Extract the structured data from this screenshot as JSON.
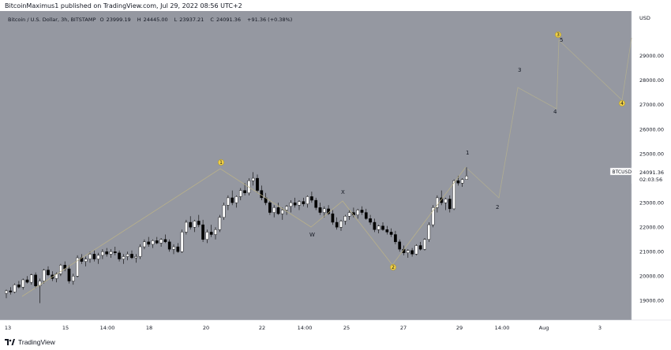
{
  "header": {
    "published_text": "BitcoinMaximus1 published on TradingView.com, Jul 29, 2022 08:56 UTC+2"
  },
  "legend": {
    "symbol": "Bitcoin / U.S. Dollar, 3h, BITSTAMP",
    "open_label": "O",
    "open": "23999.19",
    "high_label": "H",
    "high": "24445.00",
    "low_label": "L",
    "low": "23937.21",
    "close_label": "C",
    "close": "24091.36",
    "change": "+91.36 (+0.38%)"
  },
  "price_axis": {
    "currency": "USD",
    "ticks": [
      "29000.00",
      "28000.00",
      "27000.00",
      "26000.00",
      "25000.00",
      "24000.00",
      "23000.00",
      "22000.00",
      "21000.00",
      "20000.00",
      "19000.00"
    ]
  },
  "price_tag": {
    "symbol": "BTCUSD",
    "price": "24091.36",
    "countdown": "02:03:56"
  },
  "time_axis": {
    "ticks": [
      "13",
      "15",
      "14:00",
      "18",
      "20",
      "22",
      "14:00",
      "25",
      "27",
      "29",
      "14:00",
      "Aug",
      "3"
    ]
  },
  "wave_labels": {
    "plain": [
      "W",
      "X",
      "1",
      "2",
      "3",
      "4",
      "5"
    ],
    "circled": [
      "1",
      "2",
      "3",
      "4"
    ]
  },
  "footer": {
    "logo_text": "TradingView"
  },
  "colors": {
    "chart_background": "#9598a1",
    "up_candle": "#ffffff",
    "down_candle": "#000000",
    "wave_line": "#b8b08a",
    "projection_line": "#b0ad92",
    "circle_label": "#f0d047"
  },
  "chart_data": {
    "type": "candlestick",
    "symbol": "Bitcoin / U.S. Dollar",
    "timeframe": "3h",
    "exchange": "BITSTAMP",
    "last_price": 24091.36,
    "ylim": [
      18400,
      30700
    ],
    "y_ticks": [
      19000,
      20000,
      21000,
      22000,
      23000,
      24000,
      25000,
      26000,
      27000,
      28000,
      29000
    ],
    "x_ticks": [
      "13",
      "15",
      "14:00",
      "18",
      "20",
      "22",
      "14:00",
      "25",
      "27",
      "29",
      "14:00",
      "Aug",
      "3"
    ],
    "swing_path": [
      {
        "date": "Jul 13",
        "price": 19500,
        "label": ""
      },
      {
        "date": "Jul 20",
        "price": 24250,
        "label": "(1)"
      },
      {
        "date": "Jul 24",
        "price": 21900,
        "label": "W"
      },
      {
        "date": "Jul 25",
        "price": 22800,
        "label": "X"
      },
      {
        "date": "Jul 26",
        "price": 21000,
        "label": "(2)"
      },
      {
        "date": "Jul 29",
        "price": 24300,
        "label": ""
      }
    ],
    "projected_path": [
      {
        "date": "Jul 29",
        "price": 24300,
        "label": "1"
      },
      {
        "date": "Jul 30",
        "price": 23150,
        "label": "2"
      },
      {
        "date": "Jul 31",
        "price": 27900,
        "label": "3"
      },
      {
        "date": "Aug 1",
        "price": 26700,
        "label": "4"
      },
      {
        "date": "Aug 1",
        "price": 29200,
        "label": "5"
      },
      {
        "date": "Aug 4",
        "price": 26800,
        "label": "(4)"
      },
      {
        "date": "Aug 4",
        "price": 29500,
        "label": ""
      }
    ],
    "candles_ohlc": [
      [
        19300,
        19450,
        19100,
        19400
      ],
      [
        19400,
        19550,
        19250,
        19350
      ],
      [
        19350,
        19700,
        19300,
        19650
      ],
      [
        19650,
        19800,
        19500,
        19550
      ],
      [
        19550,
        19900,
        19450,
        19850
      ],
      [
        19850,
        20000,
        19700,
        19750
      ],
      [
        19750,
        20100,
        19650,
        20050
      ],
      [
        20050,
        20150,
        19500,
        19600
      ],
      [
        19600,
        19900,
        18900,
        19800
      ],
      [
        19800,
        20300,
        19700,
        20250
      ],
      [
        20250,
        20400,
        20000,
        20050
      ],
      [
        20050,
        20200,
        19800,
        19900
      ],
      [
        19900,
        20150,
        19750,
        20100
      ],
      [
        20100,
        20500,
        20000,
        20450
      ],
      [
        20450,
        20600,
        20200,
        20300
      ],
      [
        20300,
        20450,
        19700,
        19800
      ],
      [
        19800,
        20100,
        19650,
        20000
      ],
      [
        20000,
        20850,
        19950,
        20750
      ],
      [
        20750,
        20900,
        20500,
        20600
      ],
      [
        20600,
        20800,
        20400,
        20700
      ],
      [
        20700,
        21000,
        20550,
        20900
      ],
      [
        20900,
        21050,
        20600,
        20700
      ],
      [
        20700,
        20950,
        20500,
        20850
      ],
      [
        20850,
        21100,
        20700,
        21000
      ],
      [
        21000,
        21150,
        20800,
        20900
      ],
      [
        20900,
        21100,
        20750,
        21000
      ],
      [
        21000,
        21200,
        20850,
        20950
      ],
      [
        20950,
        21050,
        20600,
        20700
      ],
      [
        20700,
        20900,
        20500,
        20800
      ],
      [
        20800,
        21000,
        20650,
        20900
      ],
      [
        20900,
        21050,
        20700,
        20750
      ],
      [
        20750,
        20900,
        20550,
        20800
      ],
      [
        20800,
        21300,
        20700,
        21200
      ],
      [
        21200,
        21500,
        21100,
        21400
      ],
      [
        21400,
        21600,
        21200,
        21300
      ],
      [
        21300,
        21500,
        21150,
        21450
      ],
      [
        21450,
        21600,
        21300,
        21350
      ],
      [
        21350,
        21550,
        21200,
        21500
      ],
      [
        21500,
        21700,
        21350,
        21400
      ],
      [
        21400,
        21500,
        21000,
        21100
      ],
      [
        21100,
        21300,
        20900,
        21200
      ],
      [
        21200,
        21350,
        20950,
        21000
      ],
      [
        21000,
        21900,
        20950,
        21800
      ],
      [
        21800,
        22300,
        21700,
        22200
      ],
      [
        22200,
        22450,
        21900,
        22000
      ],
      [
        22000,
        22300,
        21800,
        22250
      ],
      [
        22250,
        22500,
        22000,
        22100
      ],
      [
        22100,
        22300,
        21400,
        21500
      ],
      [
        21500,
        21900,
        21350,
        21800
      ],
      [
        21800,
        22100,
        21600,
        21700
      ],
      [
        21700,
        22000,
        21500,
        21900
      ],
      [
        21900,
        22500,
        21800,
        22400
      ],
      [
        22400,
        23000,
        22300,
        22900
      ],
      [
        22900,
        23300,
        22700,
        23200
      ],
      [
        23200,
        23500,
        22900,
        23000
      ],
      [
        23000,
        23300,
        22800,
        23250
      ],
      [
        23250,
        23600,
        23100,
        23500
      ],
      [
        23500,
        23800,
        23300,
        23400
      ],
      [
        23400,
        24000,
        23300,
        23900
      ],
      [
        23900,
        24250,
        23700,
        24000
      ],
      [
        24000,
        24150,
        23400,
        23500
      ],
      [
        23500,
        23700,
        23100,
        23200
      ],
      [
        23200,
        23400,
        22900,
        23000
      ],
      [
        23000,
        23100,
        22500,
        22600
      ],
      [
        22600,
        22900,
        22400,
        22800
      ],
      [
        22800,
        23000,
        22500,
        22550
      ],
      [
        22550,
        22800,
        22300,
        22700
      ],
      [
        22700,
        22900,
        22500,
        22850
      ],
      [
        22850,
        23100,
        22600,
        23000
      ],
      [
        23000,
        23200,
        22800,
        22900
      ],
      [
        22900,
        23100,
        22700,
        23050
      ],
      [
        23050,
        23200,
        22850,
        22950
      ],
      [
        22950,
        23300,
        22800,
        23250
      ],
      [
        23250,
        23450,
        23000,
        23100
      ],
      [
        23100,
        23200,
        22700,
        22800
      ],
      [
        22800,
        23000,
        22500,
        22600
      ],
      [
        22600,
        22850,
        22400,
        22750
      ],
      [
        22750,
        22900,
        22500,
        22550
      ],
      [
        22550,
        22700,
        22100,
        22200
      ],
      [
        22200,
        22400,
        21900,
        22000
      ],
      [
        22000,
        22300,
        21850,
        22250
      ],
      [
        22250,
        22500,
        22100,
        22450
      ],
      [
        22450,
        22700,
        22300,
        22600
      ],
      [
        22600,
        22800,
        22400,
        22500
      ],
      [
        22500,
        22750,
        22350,
        22700
      ],
      [
        22700,
        22850,
        22500,
        22600
      ],
      [
        22600,
        22750,
        22300,
        22350
      ],
      [
        22350,
        22500,
        22100,
        22200
      ],
      [
        22200,
        22350,
        21800,
        21900
      ],
      [
        21900,
        22100,
        21750,
        22050
      ],
      [
        22050,
        22200,
        21850,
        21900
      ],
      [
        21900,
        22050,
        21700,
        21800
      ],
      [
        21800,
        21950,
        21600,
        21700
      ],
      [
        21700,
        21850,
        21300,
        21400
      ],
      [
        21400,
        21500,
        21000,
        21100
      ],
      [
        21100,
        21250,
        20850,
        20950
      ],
      [
        20950,
        21100,
        20750,
        21050
      ],
      [
        21050,
        21150,
        20800,
        20900
      ],
      [
        20900,
        21300,
        20850,
        21250
      ],
      [
        21250,
        21400,
        21050,
        21100
      ],
      [
        21100,
        21550,
        21050,
        21500
      ],
      [
        21500,
        22200,
        21400,
        22100
      ],
      [
        22100,
        22900,
        22000,
        22800
      ],
      [
        22800,
        23300,
        22600,
        23200
      ],
      [
        23200,
        23500,
        22900,
        23000
      ],
      [
        23000,
        23200,
        22700,
        23150
      ],
      [
        23150,
        23300,
        22600,
        22750
      ],
      [
        22750,
        23950,
        22700,
        23900
      ],
      [
        23900,
        24100,
        23700,
        23800
      ],
      [
        23800,
        24000,
        23650,
        23950
      ],
      [
        23950,
        24445,
        23937,
        24091
      ]
    ]
  }
}
